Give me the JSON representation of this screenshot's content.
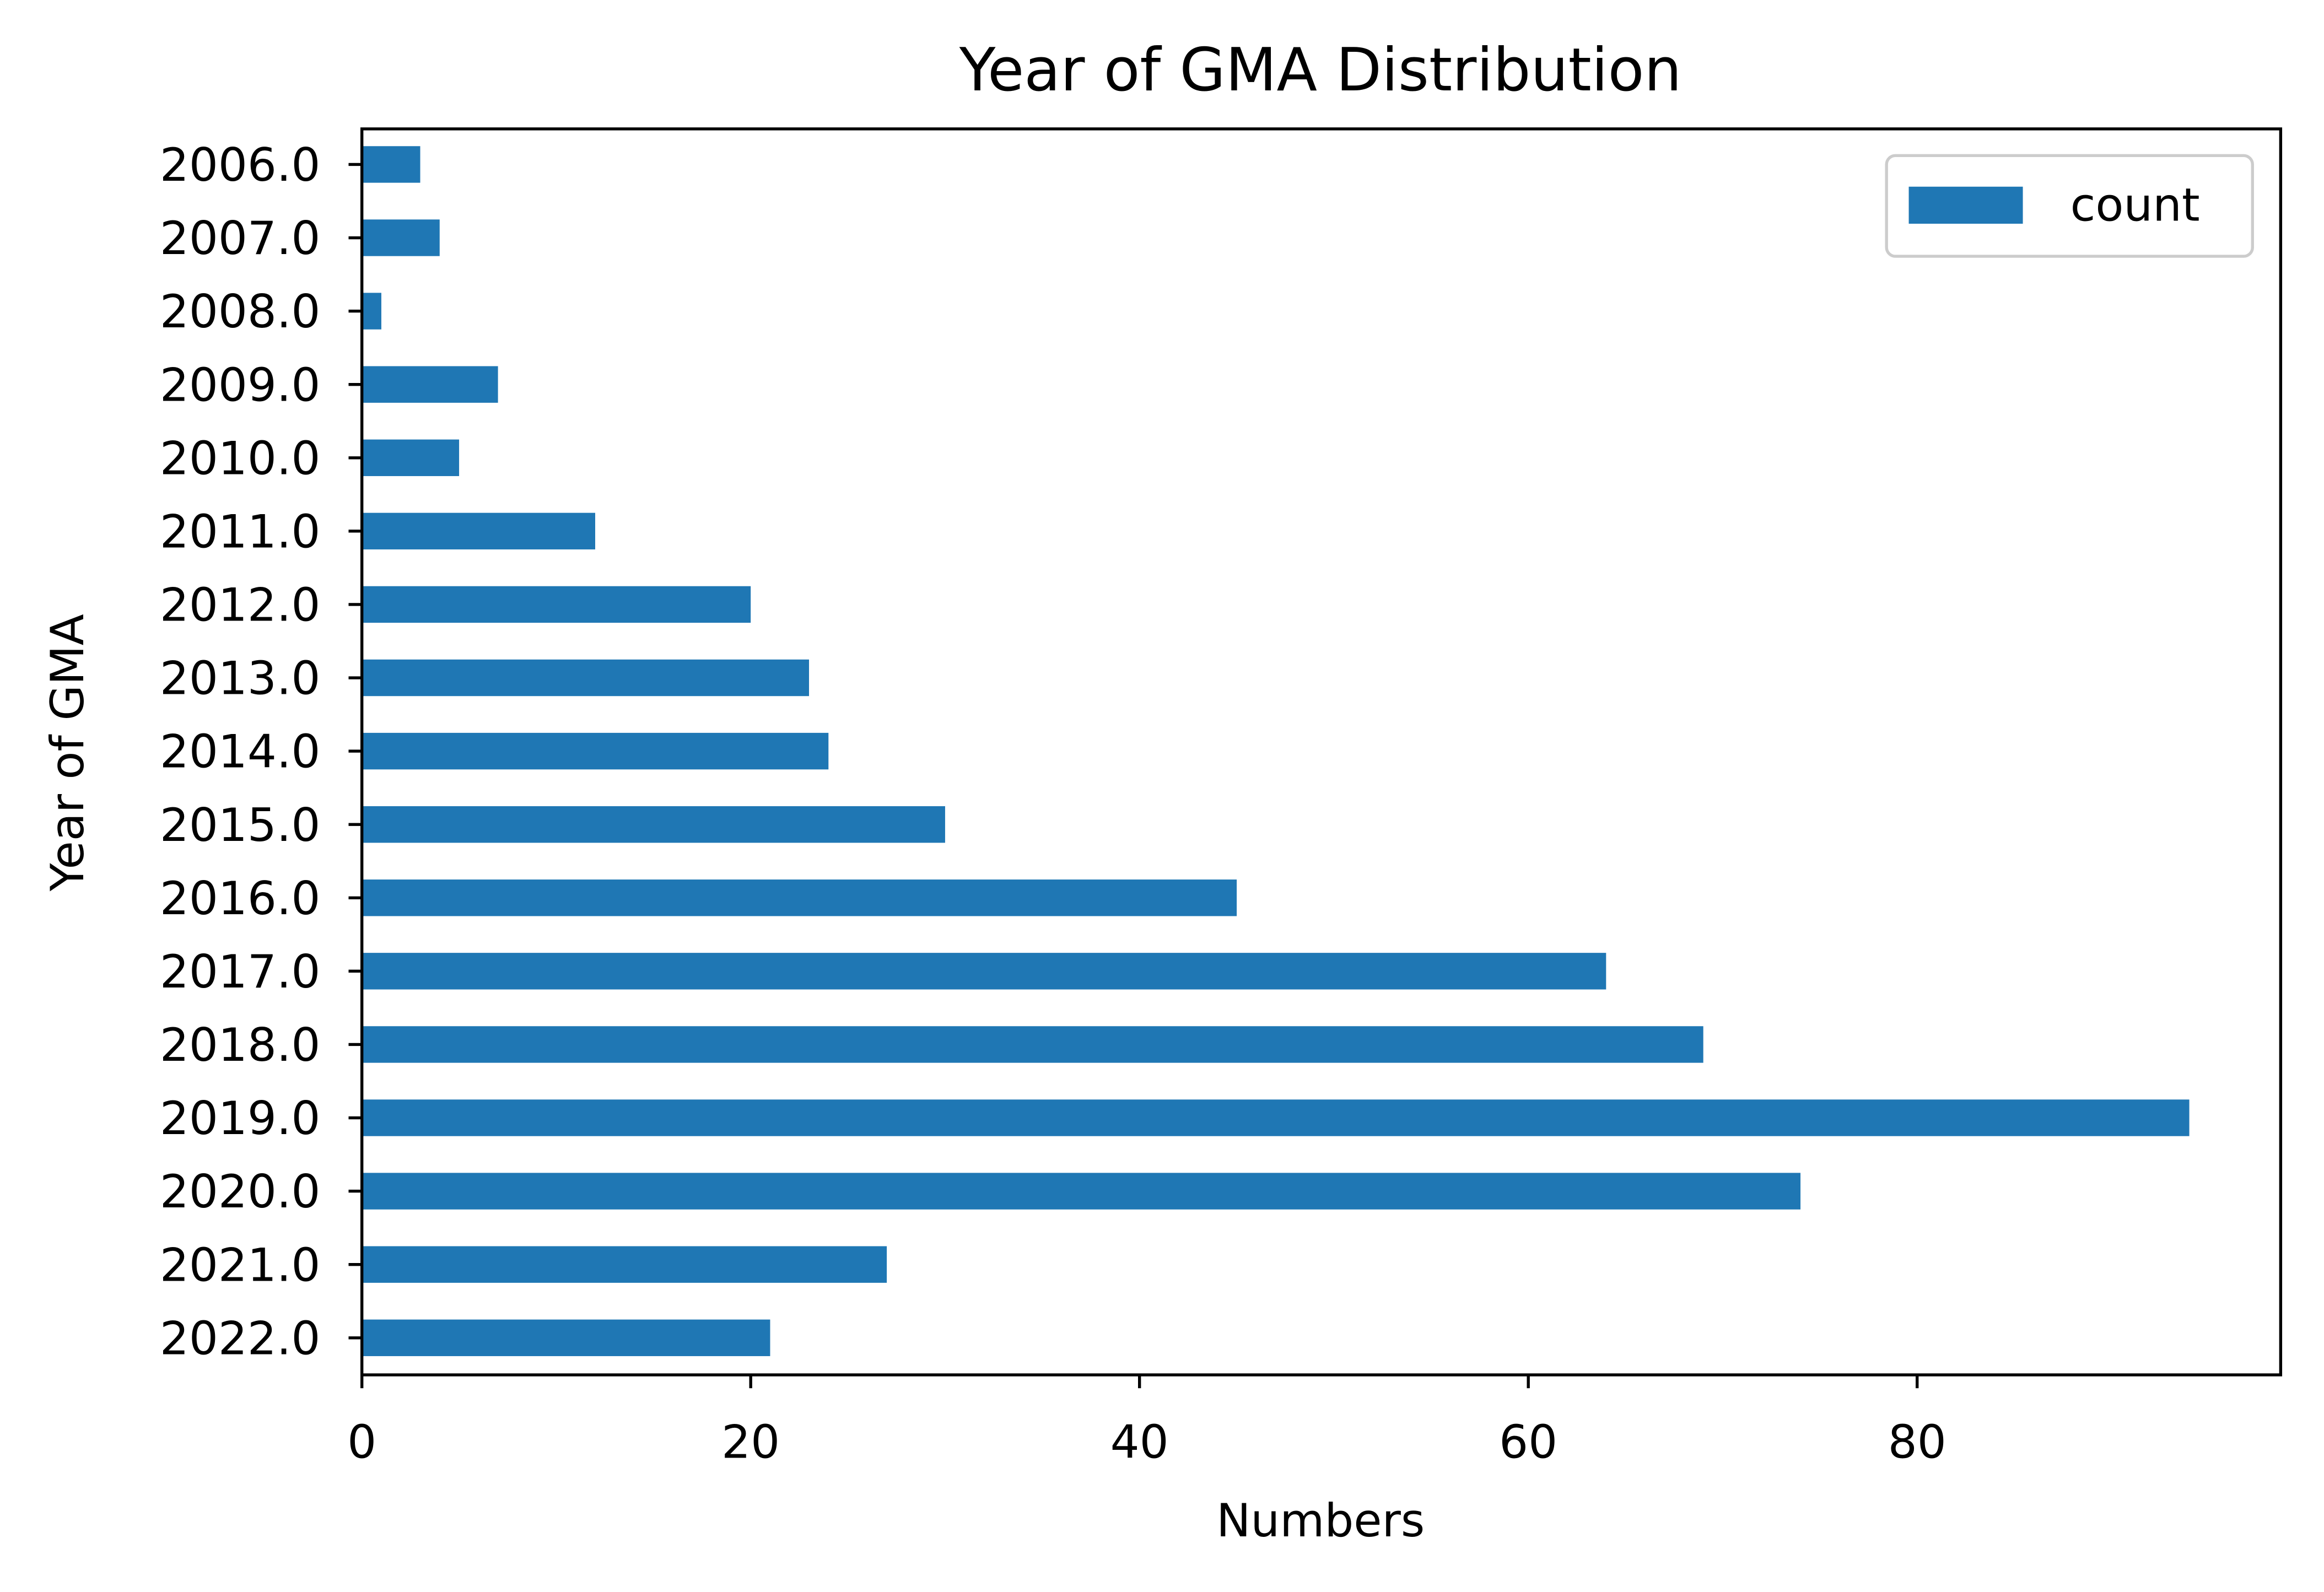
{
  "chart_data": {
    "type": "bar",
    "orientation": "horizontal",
    "title": "Year of GMA Distribution",
    "xlabel": "Numbers",
    "ylabel": "Year of GMA",
    "categories": [
      "2006.0",
      "2007.0",
      "2008.0",
      "2009.0",
      "2010.0",
      "2011.0",
      "2012.0",
      "2013.0",
      "2014.0",
      "2015.0",
      "2016.0",
      "2017.0",
      "2018.0",
      "2019.0",
      "2020.0",
      "2021.0",
      "2022.0"
    ],
    "series": [
      {
        "name": "count",
        "values": [
          3,
          4,
          1,
          7,
          5,
          12,
          20,
          23,
          24,
          30,
          45,
          64,
          69,
          94,
          74,
          27,
          21
        ],
        "color": "#1f77b4"
      }
    ],
    "xlim": [
      0,
      98.7
    ],
    "xticks": [
      0,
      20,
      40,
      60,
      80
    ],
    "grid": false,
    "legend": "top-right"
  }
}
